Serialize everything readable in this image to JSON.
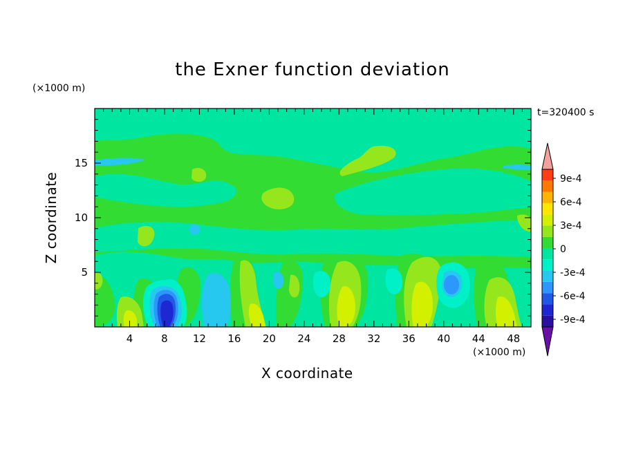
{
  "chart_data": {
    "type": "heatmap",
    "title": "the Exner function deviation",
    "xlabel": "X coordinate",
    "ylabel": "Z coordinate",
    "x_unit": "(×1000 m)",
    "y_unit": "(×1000 m)",
    "time_label": "t=320400 s",
    "xlim": [
      0,
      50
    ],
    "ylim": [
      0,
      20
    ],
    "x_ticks": [
      4,
      8,
      12,
      16,
      20,
      24,
      28,
      32,
      36,
      40,
      44,
      48
    ],
    "y_ticks": [
      5,
      10,
      15
    ],
    "colorbar": {
      "label_values": [
        "9e-4",
        "6e-4",
        "3e-4",
        "0",
        "-3e-4",
        "-6e-4",
        "-9e-4"
      ],
      "levels": [
        -0.0009,
        -0.00075,
        -0.0006,
        -0.00045,
        -0.0003,
        -0.00015,
        0,
        0.00015,
        0.0003,
        0.00045,
        0.0006,
        0.00075,
        0.0009
      ],
      "colors": [
        "#6a0fa8",
        "#2a10a0",
        "#1e28d2",
        "#1e5ae6",
        "#2d96ff",
        "#26c8f0",
        "#00f0c8",
        "#00e6a0",
        "#32dc32",
        "#96e61e",
        "#d2f000",
        "#ffe600",
        "#ffb400",
        "#ff7800",
        "#ff3c14",
        "#f5a0a0"
      ],
      "extend": "both"
    },
    "features": [
      {
        "x": 8.8,
        "z": 1.6,
        "value": -0.0006
      },
      {
        "x": 40.8,
        "z": 3.8,
        "value": -0.00045
      },
      {
        "x": 14.5,
        "z": 2.5,
        "value": -0.0003
      },
      {
        "x": 5,
        "z": 1.5,
        "value": 0.0004
      },
      {
        "x": 18.5,
        "z": 1.8,
        "value": 0.0003
      },
      {
        "x": 29,
        "z": 2.5,
        "value": 0.0003
      },
      {
        "x": 37,
        "z": 2.5,
        "value": 0.0004
      },
      {
        "x": 47,
        "z": 2,
        "value": 0.0003
      },
      {
        "x": 24,
        "z": 4,
        "value": 0.0002
      },
      {
        "x": 32,
        "z": 16,
        "value": 0.0002
      },
      {
        "x": 12,
        "z": 14,
        "value": 0.00015
      },
      {
        "x": 20,
        "z": 11.5,
        "value": 0.00012
      }
    ]
  }
}
